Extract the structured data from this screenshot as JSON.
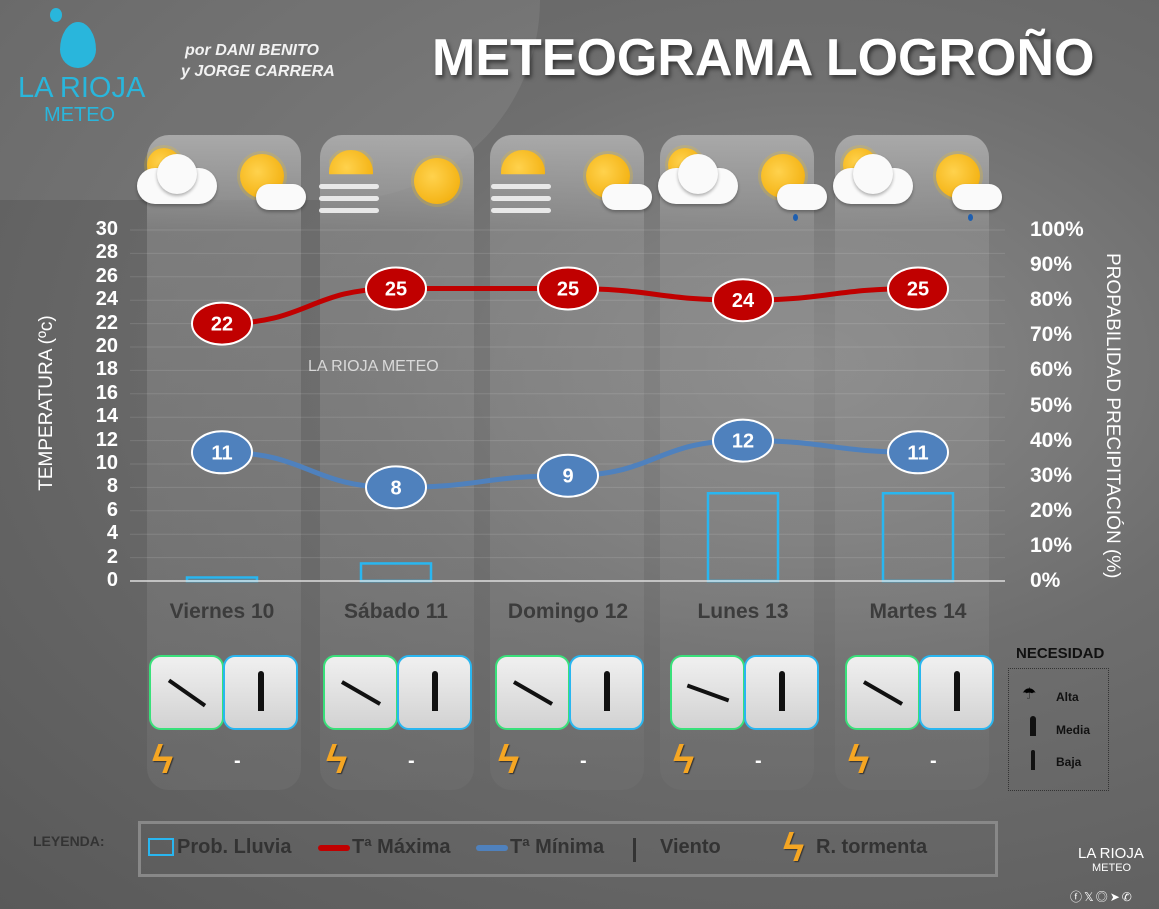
{
  "header": {
    "logo_text": "LA RIOJA",
    "logo_sub": "METEO",
    "authors_line1": "por DANI BENITO",
    "authors_line2": "y JORGE CARRERA",
    "title": "METEOGRAMA LOGROÑO"
  },
  "axes": {
    "left_label": "TEMPERATURA (ºc)",
    "right_label": "PROPABILIDAD PRECIPITACIÓN (%)",
    "left_ticks": [
      "30",
      "28",
      "26",
      "24",
      "22",
      "20",
      "18",
      "16",
      "14",
      "12",
      "10",
      "8",
      "6",
      "4",
      "2",
      "0"
    ],
    "right_ticks": [
      "100%",
      "90%",
      "80%",
      "70%",
      "60%",
      "50%",
      "40%",
      "30%",
      "20%",
      "10%",
      "0%"
    ]
  },
  "watermark": "LA RIOJA METEO",
  "chart_data": {
    "type": "line",
    "categories": [
      "Viernes 10",
      "Sábado 11",
      "Domingo 12",
      "Lunes 13",
      "Martes 14"
    ],
    "ylim": [
      0,
      30
    ],
    "y2lim": [
      0,
      100
    ],
    "series": [
      {
        "name": "Tª Máxima",
        "values": [
          22,
          25,
          25,
          24,
          25
        ],
        "color": "#c00000"
      },
      {
        "name": "Tª Mínima",
        "values": [
          11,
          8,
          9,
          12,
          11
        ],
        "color": "#4f81bd"
      },
      {
        "name": "Prob. Lluvia",
        "type": "bar",
        "axis": "right",
        "values": [
          1,
          5,
          0,
          25,
          25
        ],
        "color": "#29b6f0"
      }
    ]
  },
  "days": [
    {
      "label": "Viernes 10",
      "icons": [
        "cloud-sun",
        "sun-cloud"
      ],
      "wind_angle": 35,
      "umbrella": "Baja",
      "storm": true,
      "storm_text": "-"
    },
    {
      "label": "Sábado 11",
      "icons": [
        "fog-sun",
        "sun"
      ],
      "wind_angle": -150,
      "umbrella": "Baja",
      "storm": true,
      "storm_text": "-"
    },
    {
      "label": "Domingo 12",
      "icons": [
        "fog-sun",
        "sun-cloud"
      ],
      "wind_angle": -150,
      "umbrella": "Baja",
      "storm": true,
      "storm_text": "-"
    },
    {
      "label": "Lunes 13",
      "icons": [
        "cloud-sun",
        "sun-cloud-rain"
      ],
      "wind_angle": -160,
      "umbrella": "Baja",
      "storm": true,
      "storm_text": "-"
    },
    {
      "label": "Martes 14",
      "icons": [
        "cloud-sun",
        "sun-cloud-rain"
      ],
      "wind_angle": 30,
      "umbrella": "Baja",
      "storm": true,
      "storm_text": "-"
    }
  ],
  "necesidad": {
    "title": "NECESIDAD",
    "items": [
      "Alta",
      "Media",
      "Baja"
    ]
  },
  "legend": {
    "title": "LEYENDA:",
    "items": [
      "Prob. Lluvia",
      "Tª Máxima",
      "Tª Mínima",
      "Viento",
      "R. tormenta"
    ]
  },
  "footer": {
    "logo_text": "LA RIOJA",
    "logo_sub": "METEO",
    "social": [
      "facebook",
      "x",
      "instagram",
      "telegram",
      "whatsapp"
    ]
  }
}
